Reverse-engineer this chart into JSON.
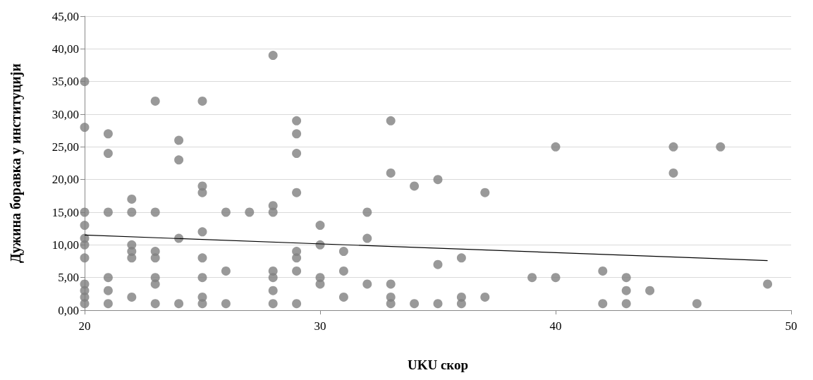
{
  "chart_data": {
    "type": "scatter",
    "xlabel": "UKU скор",
    "ylabel": "Дужина боравка у институцији",
    "series": [
      {
        "color": "#7f7f7f",
        "x": [
          20,
          20,
          20,
          20,
          20,
          20,
          20,
          20,
          20,
          20,
          20,
          21,
          21,
          21,
          21,
          21,
          21,
          22,
          22,
          22,
          22,
          22,
          22,
          23,
          23,
          23,
          23,
          23,
          23,
          23,
          24,
          24,
          24,
          24,
          25,
          25,
          25,
          25,
          25,
          25,
          25,
          25,
          26,
          26,
          26,
          27,
          28,
          28,
          28,
          28,
          28,
          28,
          28,
          29,
          29,
          29,
          29,
          29,
          29,
          29,
          29,
          30,
          30,
          30,
          30,
          31,
          31,
          31,
          32,
          32,
          32,
          33,
          33,
          33,
          33,
          33,
          34,
          34,
          35,
          35,
          35,
          36,
          36,
          36,
          37,
          37,
          39,
          40,
          40,
          42,
          42,
          43,
          43,
          43,
          44,
          45,
          45,
          46,
          47,
          49
        ],
        "values": [
          35,
          28,
          15,
          13,
          11,
          10,
          8,
          4,
          3,
          2,
          1,
          27,
          24,
          15,
          5,
          3,
          1,
          17,
          15,
          10,
          9,
          8,
          2,
          32,
          15,
          9,
          8,
          5,
          4,
          1,
          26,
          23,
          11,
          1,
          32,
          19,
          18,
          12,
          8,
          5,
          2,
          1,
          15,
          6,
          1,
          15,
          39,
          16,
          15,
          6,
          5,
          3,
          1,
          29,
          27,
          24,
          18,
          9,
          8,
          6,
          1,
          13,
          10,
          5,
          4,
          9,
          6,
          2,
          15,
          11,
          4,
          29,
          21,
          4,
          2,
          1,
          19,
          1,
          20,
          7,
          1,
          8,
          2,
          1,
          18,
          2,
          5,
          25,
          5,
          6,
          1,
          5,
          3,
          1,
          3,
          25,
          21,
          1,
          25,
          4
        ]
      },
      {
        "type": "line",
        "color": "#000000",
        "marker": "none",
        "x": [
          20,
          49
        ],
        "values": [
          11.5,
          7.6
        ]
      }
    ],
    "xlim": [
      20,
      50
    ],
    "xticks": [
      20,
      30,
      40,
      50
    ],
    "ylim": [
      0,
      45
    ],
    "yticks": [
      {
        "value": 0,
        "label": "0,00"
      },
      {
        "value": 5,
        "label": "5,00"
      },
      {
        "value": 10,
        "label": "10,00"
      },
      {
        "value": 15,
        "label": "15,00"
      },
      {
        "value": 20,
        "label": "20,00"
      },
      {
        "value": 25,
        "label": "25,00"
      },
      {
        "value": 30,
        "label": "30,00"
      },
      {
        "value": 35,
        "label": "35,00"
      },
      {
        "value": 40,
        "label": "40,00"
      },
      {
        "value": 45,
        "label": "45,00"
      }
    ],
    "grid": "y",
    "marker": "circle"
  }
}
